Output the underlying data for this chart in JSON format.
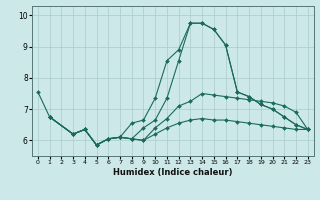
{
  "xlabel": "Humidex (Indice chaleur)",
  "bg_color": "#cce8e8",
  "grid_color": "#aacccc",
  "line_color": "#1a6b5a",
  "x_ticks": [
    0,
    1,
    2,
    3,
    4,
    5,
    6,
    7,
    8,
    9,
    10,
    11,
    12,
    13,
    14,
    15,
    16,
    17,
    18,
    19,
    20,
    21,
    22,
    23
  ],
  "ylim": [
    5.5,
    10.3
  ],
  "xlim": [
    -0.5,
    23.5
  ],
  "series": [
    {
      "x": [
        0,
        1,
        3,
        4,
        5,
        6,
        7,
        8,
        9,
        10,
        11,
        12,
        13,
        14,
        15,
        16,
        17,
        18,
        19,
        20,
        21,
        22,
        23
      ],
      "y": [
        7.55,
        6.75,
        6.2,
        6.35,
        5.85,
        6.05,
        6.1,
        6.55,
        6.65,
        7.35,
        8.55,
        8.9,
        9.75,
        9.75,
        9.55,
        9.05,
        7.55,
        7.4,
        7.15,
        7.0,
        6.75,
        6.5,
        6.35
      ]
    },
    {
      "x": [
        1,
        3,
        4,
        5,
        6,
        7,
        8,
        9,
        10,
        11,
        12,
        13,
        14,
        15,
        16,
        17,
        18,
        19,
        20,
        21,
        22,
        23
      ],
      "y": [
        6.75,
        6.2,
        6.35,
        5.85,
        6.05,
        6.1,
        6.05,
        6.4,
        6.65,
        7.35,
        8.55,
        9.75,
        9.75,
        9.55,
        9.05,
        7.55,
        7.4,
        7.15,
        7.0,
        6.75,
        6.5,
        6.35
      ]
    },
    {
      "x": [
        1,
        3,
        4,
        5,
        6,
        7,
        8,
        9,
        10,
        11,
        12,
        13,
        14,
        15,
        16,
        17,
        18,
        19,
        20,
        21,
        22,
        23
      ],
      "y": [
        6.75,
        6.2,
        6.35,
        5.85,
        6.05,
        6.1,
        6.05,
        6.0,
        6.4,
        6.7,
        7.1,
        7.25,
        7.5,
        7.45,
        7.4,
        7.35,
        7.3,
        7.25,
        7.2,
        7.1,
        6.9,
        6.35
      ]
    },
    {
      "x": [
        1,
        3,
        4,
        5,
        6,
        7,
        8,
        9,
        10,
        11,
        12,
        13,
        14,
        15,
        16,
        17,
        18,
        19,
        20,
        21,
        22,
        23
      ],
      "y": [
        6.75,
        6.2,
        6.35,
        5.85,
        6.05,
        6.1,
        6.05,
        6.0,
        6.2,
        6.4,
        6.55,
        6.65,
        6.7,
        6.65,
        6.65,
        6.6,
        6.55,
        6.5,
        6.45,
        6.4,
        6.35,
        6.35
      ]
    }
  ]
}
